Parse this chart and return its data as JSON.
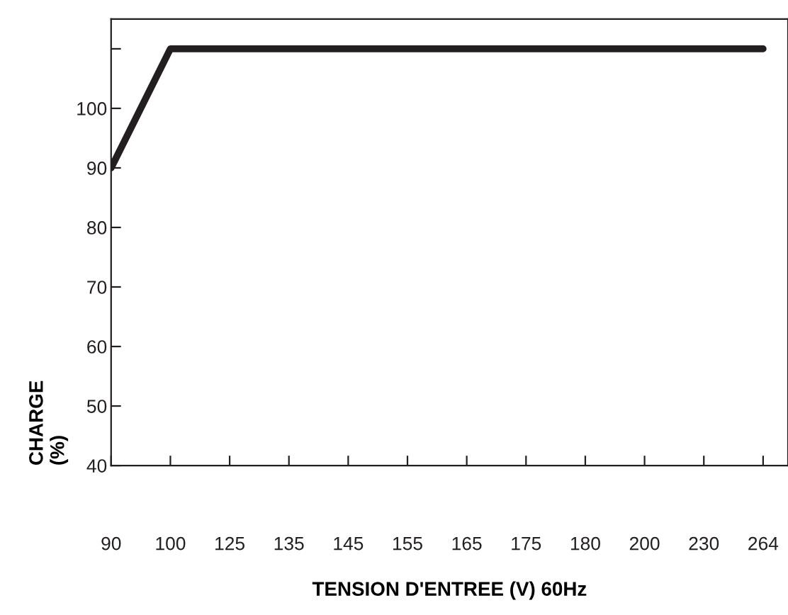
{
  "chart_data": {
    "type": "line",
    "xlabel": "TENSION D'ENTREE (V) 60Hz",
    "ylabel": "CHARGE\n(%)",
    "categories": [
      "90",
      "100",
      "125",
      "135",
      "145",
      "155",
      "165",
      "175",
      "180",
      "200",
      "230",
      "264"
    ],
    "series": [
      {
        "color": "#231f20",
        "values": [
          90,
          110,
          110,
          110,
          110,
          110,
          110,
          110,
          110,
          110,
          110,
          110
        ]
      }
    ],
    "ylim": [
      40,
      115
    ],
    "yticks": [
      40,
      50,
      60,
      70,
      80,
      90,
      100,
      {
        "value": 110,
        "label": null
      }
    ],
    "grid": false,
    "legend": false,
    "marker": "none",
    "line_style": "solid"
  }
}
